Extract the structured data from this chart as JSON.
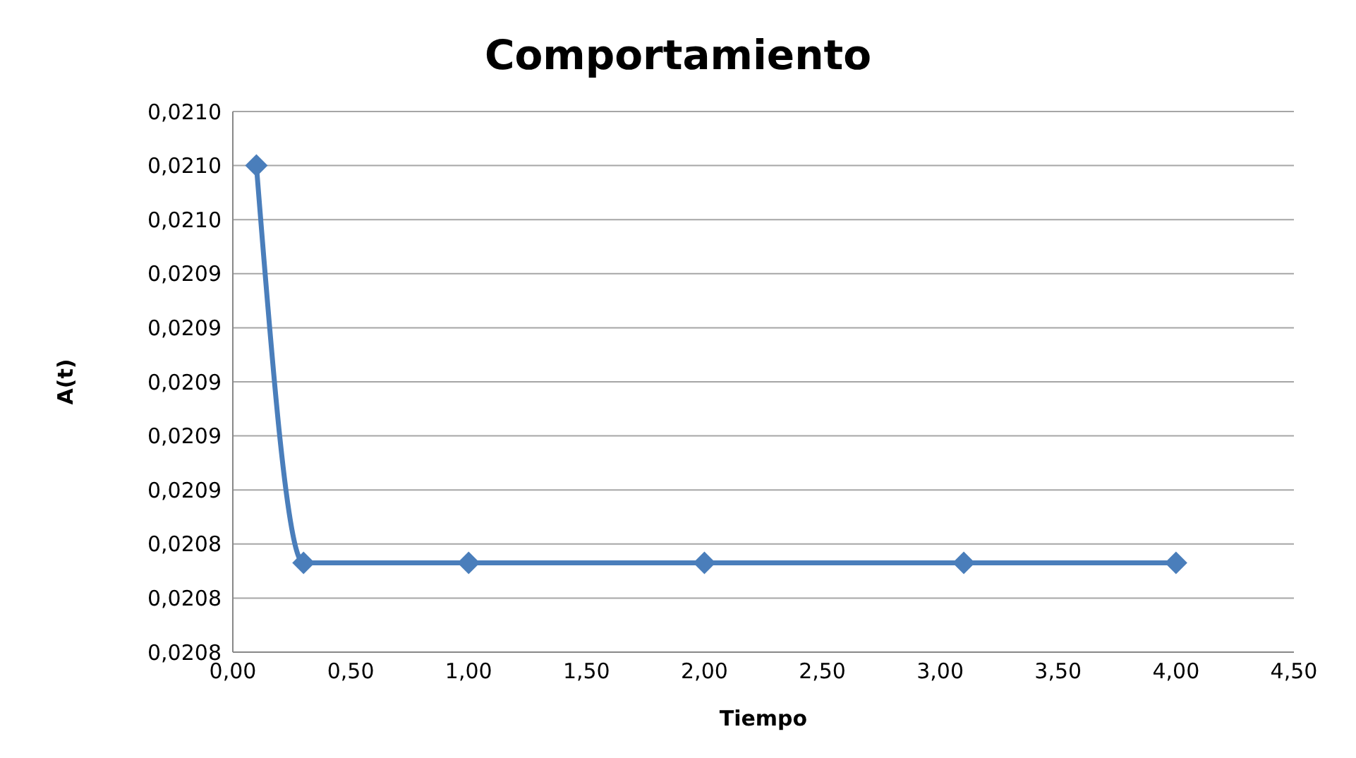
{
  "chart_data": {
    "type": "line",
    "title": "Comportamiento",
    "xlabel": "Tiempo",
    "ylabel": "A(t)",
    "x": [
      0.1,
      0.3,
      1.0,
      2.0,
      3.1,
      4.0
    ],
    "series": [
      {
        "color": "#4a7ebb",
        "values": [
          0.02098,
          0.020833,
          0.020833,
          0.020833,
          0.020833,
          0.020833
        ]
      }
    ],
    "xlim": [
      0,
      4.5
    ],
    "xticks": [
      {
        "value": 0,
        "label": "0,00"
      },
      {
        "value": 0.5,
        "label": "0,50"
      },
      {
        "value": 1,
        "label": "1,00"
      },
      {
        "value": 1.5,
        "label": "1,50"
      },
      {
        "value": 2,
        "label": "2,00"
      },
      {
        "value": 2.5,
        "label": "2,50"
      },
      {
        "value": 3,
        "label": "3,00"
      },
      {
        "value": 3.5,
        "label": "3,50"
      },
      {
        "value": 4,
        "label": "4,00"
      },
      {
        "value": 4.5,
        "label": "4,50"
      }
    ],
    "ylim": [
      0.0208,
      0.021
    ],
    "yticks": [
      {
        "value": 0.0208,
        "label": "0,0208"
      },
      {
        "value": 0.02082,
        "label": "0,0208"
      },
      {
        "value": 0.02084,
        "label": "0,0208"
      },
      {
        "value": 0.02086,
        "label": "0,0209"
      },
      {
        "value": 0.02088,
        "label": "0,0209"
      },
      {
        "value": 0.0209,
        "label": "0,0209"
      },
      {
        "value": 0.02092,
        "label": "0,0209"
      },
      {
        "value": 0.02094,
        "label": "0,0209"
      },
      {
        "value": 0.02096,
        "label": "0,0210"
      },
      {
        "value": 0.02098,
        "label": "0,0210"
      },
      {
        "value": 0.021,
        "label": "0,0210"
      }
    ],
    "grid": "y",
    "marker": "diamond",
    "line_style": "solid"
  }
}
